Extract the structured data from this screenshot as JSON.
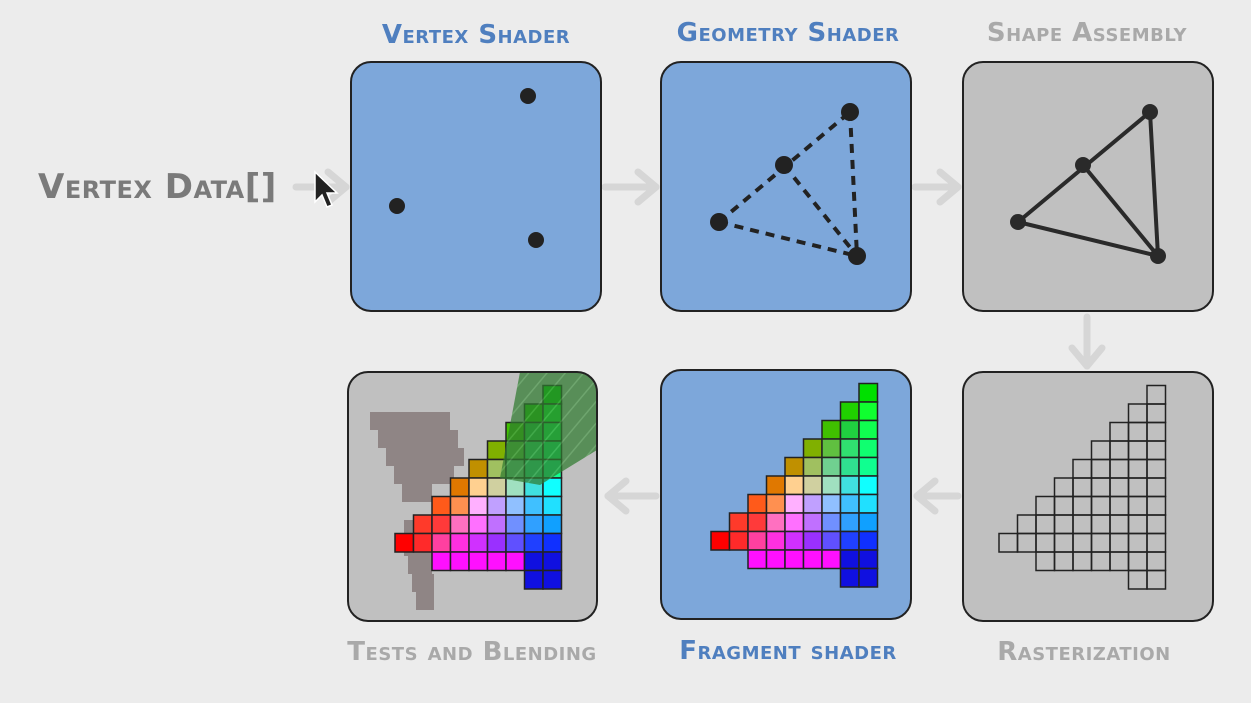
{
  "diagram": {
    "input_label": "Vertex Data[]",
    "stages": [
      {
        "id": "vertex-shader",
        "title": "Vertex Shader",
        "programmable": true
      },
      {
        "id": "geometry-shader",
        "title": "Geometry Shader",
        "programmable": true
      },
      {
        "id": "shape-assembly",
        "title": "Shape Assembly",
        "programmable": false
      },
      {
        "id": "rasterization",
        "title": "Rasterization",
        "programmable": false
      },
      {
        "id": "fragment-shader",
        "title": "Fragment shader",
        "programmable": true
      },
      {
        "id": "tests-and-blending",
        "title": "Tests and Blending",
        "programmable": false
      }
    ],
    "colors": {
      "programmable": "#7da7da",
      "fixed": "#c0c0c0",
      "arrow": "#d6d6d6",
      "title_blue": "#4f7fbf",
      "title_gray": "#a9a9a9"
    },
    "icons": [
      "cursor-arrow-icon"
    ]
  }
}
